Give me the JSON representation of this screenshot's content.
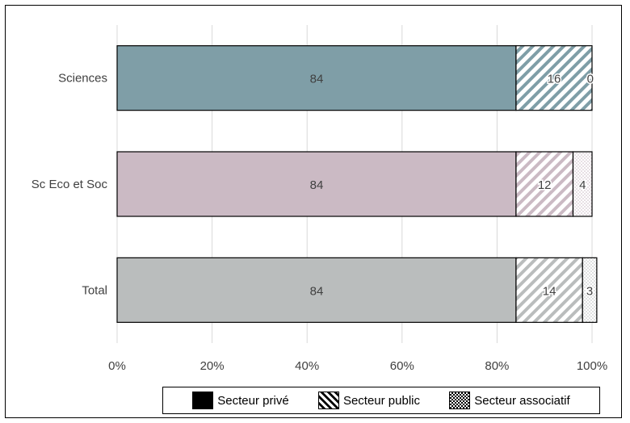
{
  "chart_data": {
    "type": "bar",
    "orientation": "horizontal",
    "stacked": true,
    "percent": true,
    "categories": [
      "Sciences",
      "Sc Eco et Soc",
      "Total"
    ],
    "series": [
      {
        "name": "Secteur privé",
        "values": [
          84,
          84,
          84
        ]
      },
      {
        "name": "Secteur public",
        "values": [
          16,
          12,
          14
        ]
      },
      {
        "name": "Secteur associatif",
        "values": [
          0,
          4,
          3
        ]
      }
    ],
    "bar_colors": [
      "#7f9ea7",
      "#cbbac4",
      "#babdbd"
    ],
    "xlim": [
      0,
      100
    ],
    "x_ticks": [
      "0%",
      "20%",
      "40%",
      "60%",
      "80%",
      "100%"
    ],
    "grid": true,
    "legend_position": "bottom"
  },
  "legend": {
    "items": [
      {
        "label": "Secteur privé",
        "icon": "solid-black"
      },
      {
        "label": "Secteur public",
        "icon": "diagonal-stripes"
      },
      {
        "label": "Secteur associatif",
        "icon": "checkered"
      }
    ]
  }
}
